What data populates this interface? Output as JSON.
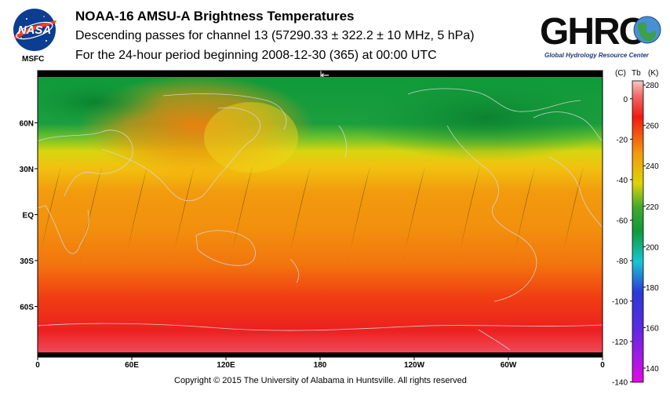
{
  "header": {
    "title": "NOAA-16 AMSU-A Brightness Temperatures",
    "subtitle1": "Descending passes for channel 13 (57290.33 ± 322.2 ± 10 MHz, 5 hPa)",
    "subtitle2": "For the 24-hour period beginning 2008-12-30 (365) at 00:00 UTC"
  },
  "logos": {
    "nasa_text": "NASA",
    "nasa_center": "MSFC",
    "ghrc_text": "GHRC",
    "ghrc_subtext": "Global Hydrology Resource Center"
  },
  "map": {
    "lat_labels": [
      "60N",
      "30N",
      "EQ",
      "30S",
      "60S"
    ],
    "lon_labels": [
      "0",
      "60E",
      "120E",
      "180",
      "120W",
      "60W",
      "0"
    ],
    "lat_values": [
      60,
      30,
      0,
      -30,
      -60
    ],
    "lon_values": [
      0,
      60,
      120,
      180,
      240,
      300,
      360
    ],
    "lat_range": [
      -90,
      90
    ],
    "lon_range": [
      0,
      360
    ],
    "swath_gap_centers_lon": [
      8,
      34,
      63,
      93,
      130,
      167,
      205,
      240,
      275,
      310,
      341
    ]
  },
  "colorbar": {
    "header_c": "(C)",
    "header_tb": "Tb",
    "header_k": "(K)",
    "k_labels": [
      "280",
      "260",
      "240",
      "220",
      "200",
      "180",
      "160",
      "140"
    ],
    "k_values": [
      280,
      260,
      240,
      220,
      200,
      180,
      160,
      140
    ],
    "c_labels": [
      "0",
      "-20",
      "-40",
      "-60",
      "-80",
      "-100",
      "-120",
      "-140"
    ],
    "c_values": [
      0,
      -20,
      -40,
      -60,
      -80,
      -100,
      -120,
      -140
    ],
    "k_range": [
      133,
      282
    ],
    "colors": [
      "#e10ae6",
      "#2b3ad6",
      "#18c6d2",
      "#0f9a3a",
      "#ded30a",
      "#f29a0e",
      "#f01a12",
      "#f7c8c4"
    ]
  },
  "footer": {
    "copyright": "Copyright © 2015 The University of Alabama in Huntsville.  All rights reserved"
  }
}
